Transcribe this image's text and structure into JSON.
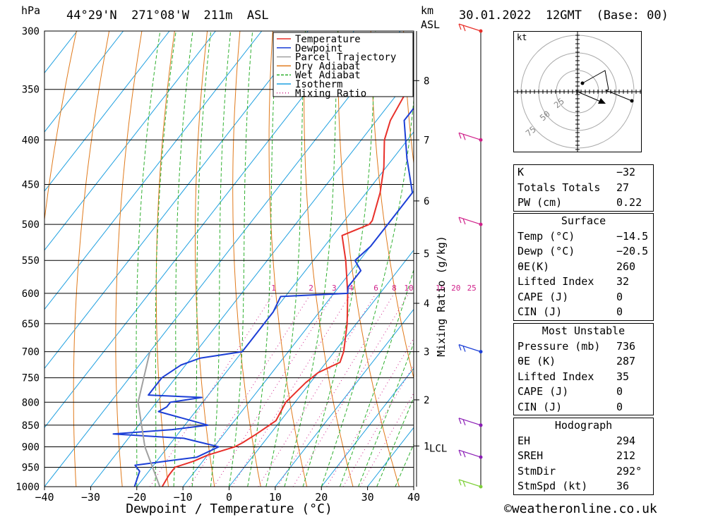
{
  "header": {
    "location": "44°29'N  271°08'W  211m  ASL",
    "date": "30.01.2022  12GMT  (Base: 00)",
    "hpa_label": "hPa",
    "km_label": "km",
    "asl_label": "ASL"
  },
  "chart_data": {
    "type": "skew-T log-P sounding",
    "xlabel": "Dewpoint / Temperature (°C)",
    "ylabel_left": "hPa",
    "ylabel_right": "Mixing Ratio (g/kg)",
    "x_ticks": [
      -40,
      -30,
      -20,
      -10,
      0,
      10,
      20,
      30,
      40
    ],
    "x_tick_labels": [
      "−40",
      "−30",
      "−20",
      "−10",
      "0",
      "10",
      "20",
      "30",
      "40"
    ],
    "pressure_levels": [
      300,
      350,
      400,
      450,
      500,
      550,
      600,
      650,
      700,
      750,
      800,
      850,
      900,
      950,
      1000
    ],
    "km_labels": [
      {
        "p": 342,
        "label": "8"
      },
      {
        "p": 400,
        "label": "7"
      },
      {
        "p": 470,
        "label": "6"
      },
      {
        "p": 540,
        "label": "5"
      },
      {
        "p": 616,
        "label": "4"
      },
      {
        "p": 700,
        "label": "3"
      },
      {
        "p": 795,
        "label": "2"
      },
      {
        "p": 898,
        "label": "1"
      }
    ],
    "lcl_label": "LCL",
    "lcl_pressure": 900,
    "mixing_ratio_labels": [
      "1",
      "2",
      "3",
      "4",
      "6",
      "8",
      "10",
      "16",
      "20",
      "25"
    ],
    "legend": [
      {
        "label": "Temperature",
        "color": "#e8302a"
      },
      {
        "label": "Dewpoint",
        "color": "#1c3fd6"
      },
      {
        "label": "Parcel Trajectory",
        "color": "#a0a0a0"
      },
      {
        "label": "Dry Adiabat",
        "color": "#e07a1c"
      },
      {
        "label": "Wet Adiabat",
        "color": "#30b030"
      },
      {
        "label": "Isotherm",
        "color": "#1fa0e0"
      },
      {
        "label": "Mixing Ratio",
        "color": "#d0208a"
      }
    ],
    "series": [
      {
        "name": "Temperature",
        "points": [
          [
            1000,
            -14.5
          ],
          [
            970,
            -15
          ],
          [
            950,
            -15
          ],
          [
            935,
            -12
          ],
          [
            920,
            -10
          ],
          [
            900,
            -5.5
          ],
          [
            890,
            -4.5
          ],
          [
            870,
            -3
          ],
          [
            855,
            -2
          ],
          [
            840,
            -1
          ],
          [
            800,
            -2
          ],
          [
            760,
            -1
          ],
          [
            740,
            0
          ],
          [
            720,
            3
          ],
          [
            700,
            2
          ],
          [
            650,
            -2
          ],
          [
            600,
            -7
          ],
          [
            550,
            -13
          ],
          [
            515,
            -18
          ],
          [
            500,
            -14
          ],
          [
            495,
            -14
          ],
          [
            460,
            -17
          ],
          [
            430,
            -20.5
          ],
          [
            400,
            -25
          ],
          [
            380,
            -27
          ],
          [
            350,
            -28.5
          ],
          [
            320,
            -31
          ],
          [
            300,
            -33
          ]
        ]
      },
      {
        "name": "Dewpoint",
        "points": [
          [
            1000,
            -20.5
          ],
          [
            960,
            -22
          ],
          [
            945,
            -24
          ],
          [
            935,
            -18
          ],
          [
            925,
            -12
          ],
          [
            900,
            -9
          ],
          [
            880,
            -18
          ],
          [
            870,
            -34
          ],
          [
            860,
            -22
          ],
          [
            850,
            -15
          ],
          [
            820,
            -28
          ],
          [
            810,
            -27
          ],
          [
            800,
            -27
          ],
          [
            790,
            -21
          ],
          [
            785,
            -33
          ],
          [
            750,
            -33
          ],
          [
            725,
            -31
          ],
          [
            712,
            -28
          ],
          [
            700,
            -20
          ],
          [
            680,
            -20
          ],
          [
            630,
            -20
          ],
          [
            605,
            -21
          ],
          [
            600,
            -7
          ],
          [
            590,
            -8
          ],
          [
            565,
            -8
          ],
          [
            550,
            -11
          ],
          [
            530,
            -10
          ],
          [
            500,
            -10
          ],
          [
            460,
            -10
          ],
          [
            420,
            -17
          ],
          [
            380,
            -24
          ],
          [
            350,
            -24
          ],
          [
            320,
            -24
          ],
          [
            300,
            -26
          ]
        ]
      },
      {
        "name": "Parcel Trajectory",
        "points": [
          [
            1000,
            -15
          ],
          [
            900,
            -25
          ],
          [
            800,
            -34
          ],
          [
            700,
            -40
          ]
        ]
      }
    ],
    "wind_barbs": [
      {
        "p": 300,
        "color": "#e8302a"
      },
      {
        "p": 400,
        "color": "#d0208a"
      },
      {
        "p": 500,
        "color": "#d0208a"
      },
      {
        "p": 700,
        "color": "#1c3fd6"
      },
      {
        "p": 850,
        "color": "#8a1cb5"
      },
      {
        "p": 925,
        "color": "#8a1cb5"
      },
      {
        "p": 1000,
        "color": "#7fd03a"
      }
    ]
  },
  "hodograph": {
    "unit": "kt",
    "ring_labels": [
      "25",
      "50",
      "75"
    ]
  },
  "indices": {
    "rows": [
      {
        "label": "K",
        "value": "−32"
      },
      {
        "label": "Totals Totals",
        "value": "27"
      },
      {
        "label": "PW (cm)",
        "value": "0.22"
      }
    ]
  },
  "surface": {
    "title": "Surface",
    "rows": [
      {
        "label": "Temp (°C)",
        "value": "−14.5"
      },
      {
        "label": "Dewp (°C)",
        "value": "−20.5"
      },
      {
        "label": "θE(K)",
        "value": "260"
      },
      {
        "label": "Lifted Index",
        "value": "32"
      },
      {
        "label": "CAPE (J)",
        "value": "0"
      },
      {
        "label": "CIN (J)",
        "value": "0"
      }
    ]
  },
  "most_unstable": {
    "title": "Most Unstable",
    "rows": [
      {
        "label": "Pressure (mb)",
        "value": "736"
      },
      {
        "label": "θE (K)",
        "value": "287"
      },
      {
        "label": "Lifted Index",
        "value": "35"
      },
      {
        "label": "CAPE (J)",
        "value": "0"
      },
      {
        "label": "CIN (J)",
        "value": "0"
      }
    ]
  },
  "hodograph_table": {
    "title": "Hodograph",
    "rows": [
      {
        "label": "EH",
        "value": "294"
      },
      {
        "label": "SREH",
        "value": "212"
      },
      {
        "label": "StmDir",
        "value": "292°"
      },
      {
        "label": "StmSpd (kt)",
        "value": "36"
      }
    ]
  },
  "footer": {
    "credit": "©weatheronline.co.uk"
  }
}
